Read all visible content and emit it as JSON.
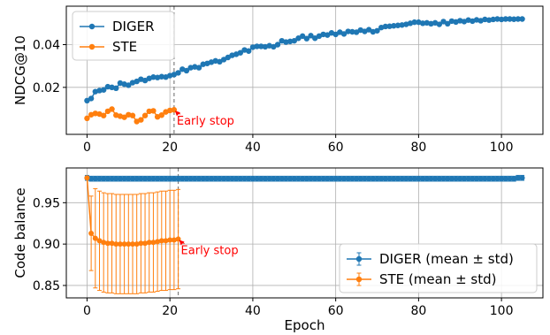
{
  "chart_data": [
    {
      "type": "line",
      "title": "",
      "xlabel": "",
      "ylabel": "NDCG@10",
      "xlim": [
        -5,
        110
      ],
      "ylim": [
        -0.002,
        0.058
      ],
      "xticks": [
        0,
        20,
        40,
        60,
        80,
        100
      ],
      "xtick_labels": [
        "0",
        "20",
        "40",
        "60",
        "80",
        "100"
      ],
      "yticks": [
        0.02,
        0.04
      ],
      "ytick_labels": [
        "0.02",
        "0.04"
      ],
      "grid": true,
      "legend_position": "top-left",
      "early_stop_x": 21,
      "annotation": {
        "text": "Early stop",
        "x": 21,
        "y": 0.0095,
        "color": "#ff0000"
      },
      "series": [
        {
          "name": "DIGER",
          "color": "#1f77b4",
          "x": [
            0,
            1,
            2,
            3,
            4,
            5,
            6,
            7,
            8,
            9,
            10,
            11,
            12,
            13,
            14,
            15,
            16,
            17,
            18,
            19,
            20,
            21,
            22,
            23,
            24,
            25,
            26,
            27,
            28,
            29,
            30,
            31,
            32,
            33,
            34,
            35,
            36,
            37,
            38,
            39,
            40,
            41,
            42,
            43,
            44,
            45,
            46,
            47,
            48,
            49,
            50,
            51,
            52,
            53,
            54,
            55,
            56,
            57,
            58,
            59,
            60,
            61,
            62,
            63,
            64,
            65,
            66,
            67,
            68,
            69,
            70,
            71,
            72,
            73,
            74,
            75,
            76,
            77,
            78,
            79,
            80,
            81,
            82,
            83,
            84,
            85,
            86,
            87,
            88,
            89,
            90,
            91,
            92,
            93,
            94,
            95,
            96,
            97,
            98,
            99,
            100,
            101,
            102,
            103,
            104,
            105
          ],
          "values": [
            0.0138,
            0.0148,
            0.018,
            0.0185,
            0.0188,
            0.0203,
            0.02,
            0.0196,
            0.022,
            0.0215,
            0.021,
            0.0222,
            0.0228,
            0.0238,
            0.0232,
            0.0242,
            0.0248,
            0.0246,
            0.025,
            0.0248,
            0.0255,
            0.026,
            0.0268,
            0.0285,
            0.0278,
            0.0292,
            0.0296,
            0.0292,
            0.0308,
            0.0312,
            0.0318,
            0.0324,
            0.032,
            0.033,
            0.034,
            0.035,
            0.0355,
            0.0362,
            0.0375,
            0.037,
            0.0388,
            0.0392,
            0.0392,
            0.039,
            0.0395,
            0.039,
            0.04,
            0.0418,
            0.0412,
            0.0415,
            0.0418,
            0.043,
            0.044,
            0.0428,
            0.0442,
            0.043,
            0.044,
            0.0448,
            0.0445,
            0.0455,
            0.0448,
            0.0458,
            0.045,
            0.0462,
            0.046,
            0.0458,
            0.0468,
            0.0462,
            0.047,
            0.046,
            0.0465,
            0.048,
            0.0485,
            0.0486,
            0.0488,
            0.049,
            0.0492,
            0.0495,
            0.05,
            0.0505,
            0.0505,
            0.05,
            0.0502,
            0.0498,
            0.0502,
            0.0495,
            0.0508,
            0.0498,
            0.051,
            0.0506,
            0.0512,
            0.0508,
            0.0515,
            0.051,
            0.0516,
            0.0512,
            0.0518,
            0.0515,
            0.0518,
            0.052,
            0.0518,
            0.052,
            0.052,
            0.0519,
            0.052,
            0.052
          ]
        },
        {
          "name": "STE",
          "color": "#ff7f0e",
          "x": [
            0,
            1,
            2,
            3,
            4,
            5,
            6,
            7,
            8,
            9,
            10,
            11,
            12,
            13,
            14,
            15,
            16,
            17,
            18,
            19,
            20,
            21
          ],
          "values": [
            0.0055,
            0.0072,
            0.0078,
            0.0075,
            0.0068,
            0.0088,
            0.0098,
            0.007,
            0.0065,
            0.006,
            0.0072,
            0.0068,
            0.004,
            0.0048,
            0.0068,
            0.0088,
            0.009,
            0.0062,
            0.007,
            0.0085,
            0.0092,
            0.0095
          ]
        }
      ]
    },
    {
      "type": "line",
      "title": "",
      "xlabel": "Epoch",
      "ylabel": "Code balance",
      "xlim": [
        -5,
        110
      ],
      "ylim": [
        0.835,
        0.992
      ],
      "xticks": [
        0,
        20,
        40,
        60,
        80,
        100
      ],
      "xtick_labels": [
        "0",
        "20",
        "40",
        "60",
        "80",
        "100"
      ],
      "yticks": [
        0.85,
        0.9,
        0.95
      ],
      "ytick_labels": [
        "0.85",
        "0.90",
        "0.95"
      ],
      "grid": true,
      "legend_position": "bottom-right",
      "early_stop_x": 22,
      "annotation": {
        "text": "Early stop",
        "x": 22,
        "y": 0.906,
        "color": "#ff0000"
      },
      "series": [
        {
          "name": "DIGER (mean ± std)",
          "color": "#1f77b4",
          "x_start": 0,
          "x_end": 105,
          "mean": [
            0.98,
            0.979,
            0.979,
            0.979,
            0.979,
            0.979,
            0.979,
            0.979,
            0.979,
            0.979,
            0.979,
            0.979,
            0.979,
            0.979,
            0.979,
            0.979,
            0.979,
            0.979,
            0.979,
            0.979,
            0.979,
            0.979,
            0.979,
            0.979,
            0.979,
            0.979,
            0.979,
            0.979,
            0.979,
            0.979,
            0.979,
            0.979,
            0.979,
            0.979,
            0.979,
            0.979,
            0.979,
            0.979,
            0.979,
            0.979,
            0.979,
            0.979,
            0.979,
            0.979,
            0.979,
            0.979,
            0.979,
            0.979,
            0.979,
            0.979,
            0.979,
            0.979,
            0.979,
            0.979,
            0.979,
            0.979,
            0.979,
            0.979,
            0.979,
            0.979,
            0.979,
            0.979,
            0.979,
            0.979,
            0.979,
            0.979,
            0.979,
            0.979,
            0.979,
            0.979,
            0.979,
            0.979,
            0.979,
            0.979,
            0.979,
            0.979,
            0.979,
            0.979,
            0.979,
            0.979,
            0.979,
            0.979,
            0.979,
            0.979,
            0.979,
            0.979,
            0.979,
            0.979,
            0.979,
            0.979,
            0.979,
            0.979,
            0.979,
            0.979,
            0.979,
            0.979,
            0.979,
            0.979,
            0.979,
            0.979,
            0.979,
            0.979,
            0.979,
            0.979,
            0.98,
            0.98
          ],
          "std": 0.003
        },
        {
          "name": "STE (mean ± std)",
          "color": "#ff7f0e",
          "x": [
            0,
            1,
            2,
            3,
            4,
            5,
            6,
            7,
            8,
            9,
            10,
            11,
            12,
            13,
            14,
            15,
            16,
            17,
            18,
            19,
            20,
            21,
            22
          ],
          "mean": [
            0.98,
            0.913,
            0.907,
            0.904,
            0.902,
            0.901,
            0.901,
            0.9,
            0.9,
            0.9,
            0.9,
            0.9,
            0.9,
            0.901,
            0.901,
            0.902,
            0.902,
            0.903,
            0.904,
            0.904,
            0.905,
            0.905,
            0.906
          ],
          "std": [
            0.0,
            0.045,
            0.06,
            0.06,
            0.06,
            0.06,
            0.06,
            0.06,
            0.06,
            0.06,
            0.06,
            0.06,
            0.06,
            0.06,
            0.06,
            0.06,
            0.06,
            0.06,
            0.06,
            0.06,
            0.06,
            0.06,
            0.06
          ]
        }
      ]
    }
  ]
}
